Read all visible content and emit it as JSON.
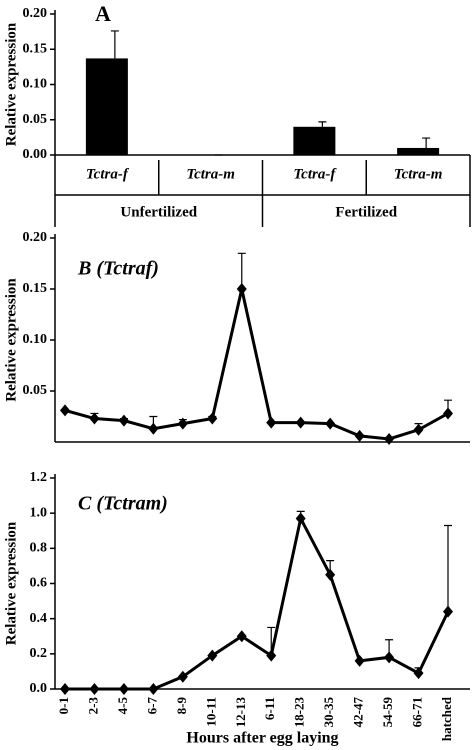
{
  "chart_data": [
    {
      "type": "bar",
      "title": "A",
      "ylabel": "Relative expression",
      "categories": [
        "Tctra-f",
        "Tctra-m",
        "Tctra-f",
        "Tctra-m"
      ],
      "groups": [
        "Unfertilized",
        "Fertilized"
      ],
      "values": [
        0.137,
        0,
        0.04,
        0.01
      ],
      "errors": [
        0.039,
        0,
        0.007,
        0.014
      ],
      "color": "#000000",
      "ylim": [
        0,
        0.2
      ],
      "yticks": [
        {
          "value": 0,
          "label": "0.00"
        },
        {
          "value": 0.05,
          "label": "0.05"
        },
        {
          "value": 0.1,
          "label": "0.10"
        },
        {
          "value": 0.15,
          "label": "0.15"
        },
        {
          "value": 0.2,
          "label": "0.20"
        }
      ]
    },
    {
      "type": "line",
      "title": "B (Tctraf)",
      "ylabel": "Relative expression",
      "values": [
        0.031,
        0.023,
        0.021,
        0.013,
        0.018,
        0.023,
        0.15,
        0.019,
        0.019,
        0.018,
        0.006,
        0.003,
        0.012,
        0.028
      ],
      "errors": [
        0,
        0.005,
        0.002,
        0.012,
        0.004,
        0.002,
        0.035,
        0,
        0,
        0,
        0,
        0.001,
        0.006,
        0.013
      ],
      "color": "#000000",
      "ylim": [
        0,
        0.2
      ],
      "yticks": [
        {
          "value": 0.05,
          "label": "0.05"
        },
        {
          "value": 0.1,
          "label": "0.10"
        },
        {
          "value": 0.15,
          "label": "0.15"
        },
        {
          "value": 0.2,
          "label": "0.20"
        }
      ]
    },
    {
      "type": "line",
      "title": "C (Tctram)",
      "ylabel": "Relative expression",
      "xlabel": "Hours after egg laying",
      "categories": [
        "0-1",
        "2-3",
        "4-5",
        "6-7",
        "8-9",
        "10-11",
        "12-13",
        "6-11",
        "18-23",
        "30-35",
        "42-47",
        "54-59",
        "66-71",
        "hatched"
      ],
      "values": [
        0,
        0,
        0,
        0,
        0.07,
        0.19,
        0.3,
        0.19,
        0.97,
        0.65,
        0.16,
        0.18,
        0.09,
        0.44
      ],
      "errors": [
        0,
        0,
        0,
        0,
        0,
        0,
        0,
        0.16,
        0.04,
        0.08,
        0,
        0.1,
        0.03,
        0.49
      ],
      "color": "#000000",
      "ylim": [
        0,
        1.2
      ],
      "yticks": [
        {
          "value": 0,
          "label": "0.0"
        },
        {
          "value": 0.2,
          "label": "0.2"
        },
        {
          "value": 0.4,
          "label": "0.4"
        },
        {
          "value": 0.6,
          "label": "0.6"
        },
        {
          "value": 0.8,
          "label": "0.8"
        },
        {
          "value": 1,
          "label": "1.0"
        },
        {
          "value": 1.2,
          "label": "1.2"
        }
      ]
    }
  ]
}
